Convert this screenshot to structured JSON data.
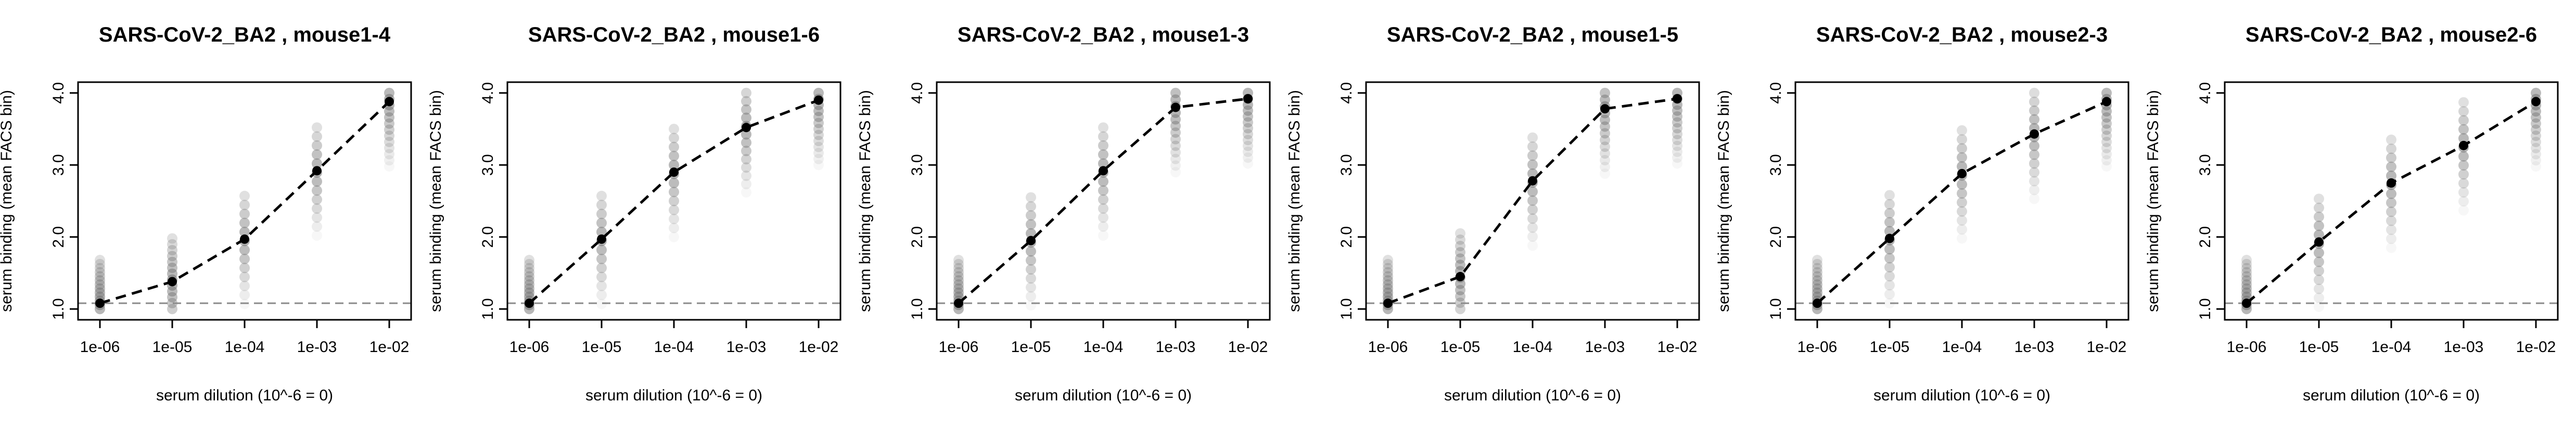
{
  "chart_data": [
    {
      "type": "line",
      "title": "SARS-CoV-2_BA2 , mouse1-4",
      "xlabel": "serum dilution (10^-6 = 0)",
      "ylabel": "serum binding (mean FACS bin)",
      "x": [
        1e-06,
        1e-05,
        0.0001,
        0.001,
        0.01
      ],
      "x_tick_labels": [
        "1e-06",
        "1e-05",
        "1e-04",
        "1e-03",
        "1e-02"
      ],
      "y_ticks": [
        1.0,
        2.0,
        3.0,
        4.0
      ],
      "y_tick_labels": [
        "1.0",
        "2.0",
        "3.0",
        "4.0"
      ],
      "x_scale": "log",
      "ylim": [
        0.85,
        4.15
      ],
      "baseline": 1.08,
      "series": [
        {
          "values": [
            1.08,
            1.38,
            1.97,
            2.92,
            3.88
          ]
        }
      ]
    },
    {
      "type": "line",
      "title": "SARS-CoV-2_BA2 , mouse1-6",
      "xlabel": "serum dilution (10^-6 = 0)",
      "ylabel": "serum binding (mean FACS bin)",
      "x": [
        1e-06,
        1e-05,
        0.0001,
        0.001,
        0.01
      ],
      "x_tick_labels": [
        "1e-06",
        "1e-05",
        "1e-04",
        "1e-03",
        "1e-02"
      ],
      "y_ticks": [
        1.0,
        2.0,
        3.0,
        4.0
      ],
      "y_tick_labels": [
        "1.0",
        "2.0",
        "3.0",
        "4.0"
      ],
      "x_scale": "log",
      "ylim": [
        0.85,
        4.15
      ],
      "baseline": 1.08,
      "series": [
        {
          "values": [
            1.08,
            1.97,
            2.9,
            3.52,
            3.9
          ]
        }
      ]
    },
    {
      "type": "line",
      "title": "SARS-CoV-2_BA2 , mouse1-3",
      "xlabel": "serum dilution (10^-6 = 0)",
      "ylabel": "serum binding (mean FACS bin)",
      "x": [
        1e-06,
        1e-05,
        0.0001,
        0.001,
        0.01
      ],
      "x_tick_labels": [
        "1e-06",
        "1e-05",
        "1e-04",
        "1e-03",
        "1e-02"
      ],
      "y_ticks": [
        1.0,
        2.0,
        3.0,
        4.0
      ],
      "y_tick_labels": [
        "1.0",
        "2.0",
        "3.0",
        "4.0"
      ],
      "x_scale": "log",
      "ylim": [
        0.85,
        4.15
      ],
      "baseline": 1.08,
      "series": [
        {
          "values": [
            1.08,
            1.95,
            2.92,
            3.8,
            3.92
          ]
        }
      ]
    },
    {
      "type": "line",
      "title": "SARS-CoV-2_BA2 , mouse1-5",
      "xlabel": "serum dilution (10^-6 = 0)",
      "ylabel": "serum binding (mean FACS bin)",
      "x": [
        1e-06,
        1e-05,
        0.0001,
        0.001,
        0.01
      ],
      "x_tick_labels": [
        "1e-06",
        "1e-05",
        "1e-04",
        "1e-03",
        "1e-02"
      ],
      "y_ticks": [
        1.0,
        2.0,
        3.0,
        4.0
      ],
      "y_tick_labels": [
        "1.0",
        "2.0",
        "3.0",
        "4.0"
      ],
      "x_scale": "log",
      "ylim": [
        0.85,
        4.15
      ],
      "baseline": 1.08,
      "series": [
        {
          "values": [
            1.08,
            1.45,
            2.78,
            3.78,
            3.92
          ]
        }
      ]
    },
    {
      "type": "line",
      "title": "SARS-CoV-2_BA2 , mouse2-3",
      "xlabel": "serum dilution (10^-6 = 0)",
      "ylabel": "serum binding (mean FACS bin)",
      "x": [
        1e-06,
        1e-05,
        0.0001,
        0.001,
        0.01
      ],
      "x_tick_labels": [
        "1e-06",
        "1e-05",
        "1e-04",
        "1e-03",
        "1e-02"
      ],
      "y_ticks": [
        1.0,
        2.0,
        3.0,
        4.0
      ],
      "y_tick_labels": [
        "1.0",
        "2.0",
        "3.0",
        "4.0"
      ],
      "x_scale": "log",
      "ylim": [
        0.85,
        4.15
      ],
      "baseline": 1.08,
      "series": [
        {
          "values": [
            1.08,
            1.98,
            2.88,
            3.43,
            3.88
          ]
        }
      ]
    },
    {
      "type": "line",
      "title": "SARS-CoV-2_BA2 , mouse2-6",
      "xlabel": "serum dilution (10^-6 = 0)",
      "ylabel": "serum binding (mean FACS bin)",
      "x": [
        1e-06,
        1e-05,
        0.0001,
        0.001,
        0.01
      ],
      "x_tick_labels": [
        "1e-06",
        "1e-05",
        "1e-04",
        "1e-03",
        "1e-02"
      ],
      "y_ticks": [
        1.0,
        2.0,
        3.0,
        4.0
      ],
      "y_tick_labels": [
        "1.0",
        "2.0",
        "3.0",
        "4.0"
      ],
      "x_scale": "log",
      "ylim": [
        0.85,
        4.15
      ],
      "baseline": 1.08,
      "series": [
        {
          "values": [
            1.08,
            1.93,
            2.75,
            3.27,
            3.88
          ]
        }
      ]
    }
  ]
}
